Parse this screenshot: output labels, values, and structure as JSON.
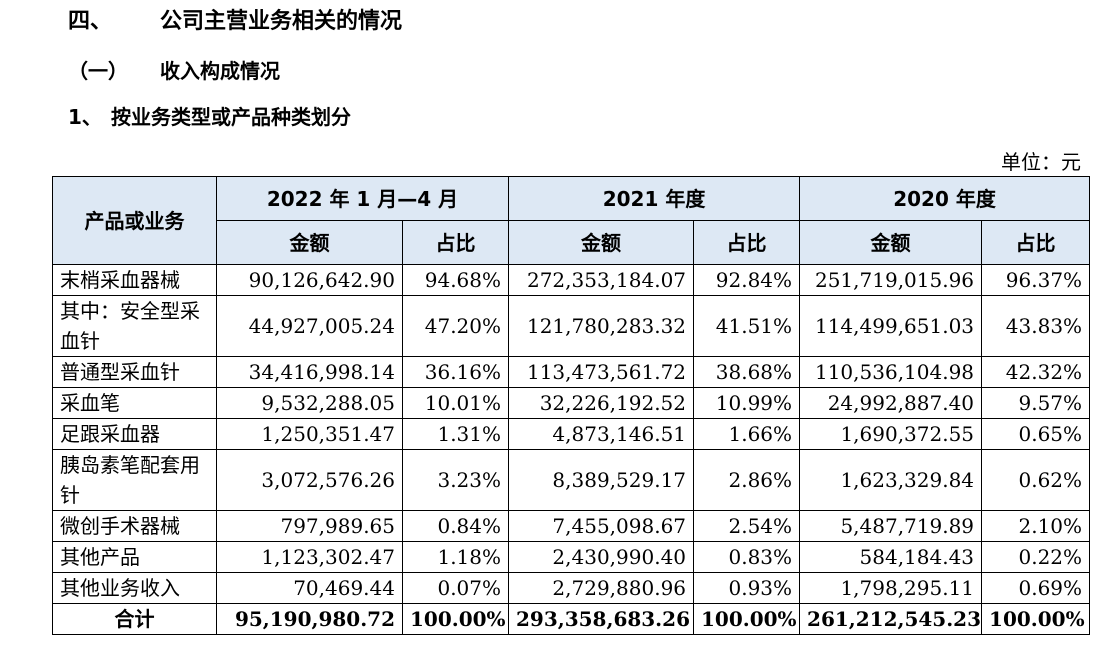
{
  "headings": {
    "section": {
      "num": "四、",
      "title": "公司主营业务相关的情况"
    },
    "subsection": {
      "num": "（一）",
      "title": "收入构成情况"
    },
    "item": {
      "num": "1、",
      "title": "按业务类型或产品种类划分"
    }
  },
  "unit_label": "单位：元",
  "table": {
    "row_header": "产品或业务",
    "periods": [
      "2022 年 1 月—4 月",
      "2021 年度",
      "2020 年度"
    ],
    "sub_headers": {
      "amount": "金额",
      "ratio": "占比"
    },
    "rows": [
      {
        "label": "末梢采血器械",
        "values": [
          "90,126,642.90",
          "94.68%",
          "272,353,184.07",
          "92.84%",
          "251,719,015.96",
          "96.37%"
        ]
      },
      {
        "label": "其中：安全型采血针",
        "values": [
          "44,927,005.24",
          "47.20%",
          "121,780,283.32",
          "41.51%",
          "114,499,651.03",
          "43.83%"
        ]
      },
      {
        "label": "普通型采血针",
        "values": [
          "34,416,998.14",
          "36.16%",
          "113,473,561.72",
          "38.68%",
          "110,536,104.98",
          "42.32%"
        ]
      },
      {
        "label": "采血笔",
        "values": [
          "9,532,288.05",
          "10.01%",
          "32,226,192.52",
          "10.99%",
          "24,992,887.40",
          "9.57%"
        ]
      },
      {
        "label": "足跟采血器",
        "values": [
          "1,250,351.47",
          "1.31%",
          "4,873,146.51",
          "1.66%",
          "1,690,372.55",
          "0.65%"
        ]
      },
      {
        "label": "胰岛素笔配套用针",
        "values": [
          "3,072,576.26",
          "3.23%",
          "8,389,529.17",
          "2.86%",
          "1,623,329.84",
          "0.62%"
        ]
      },
      {
        "label": "微创手术器械",
        "values": [
          "797,989.65",
          "0.84%",
          "7,455,098.67",
          "2.54%",
          "5,487,719.89",
          "2.10%"
        ]
      },
      {
        "label": "其他产品",
        "values": [
          "1,123,302.47",
          "1.18%",
          "2,430,990.40",
          "0.83%",
          "584,184.43",
          "0.22%"
        ]
      },
      {
        "label": "其他业务收入",
        "values": [
          "70,469.44",
          "0.07%",
          "2,729,880.96",
          "0.93%",
          "1,798,295.11",
          "0.69%"
        ]
      }
    ],
    "total": {
      "label": "合计",
      "values": [
        "95,190,980.72",
        "100.00%",
        "293,358,683.26",
        "100.00%",
        "261,212,545.23",
        "100.00%"
      ]
    }
  }
}
